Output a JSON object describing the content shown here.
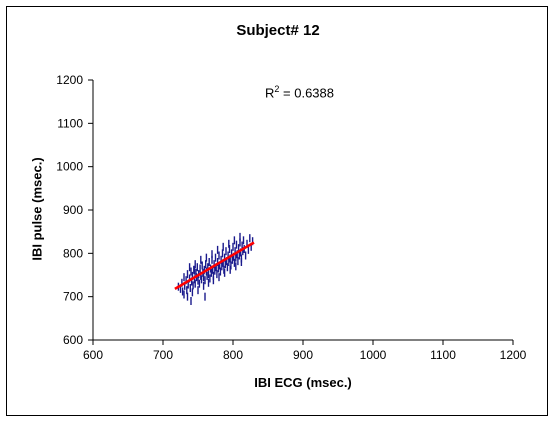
{
  "chart_data": {
    "type": "scatter",
    "title": "Subject# 12",
    "xlabel": "IBI ECG (msec.)",
    "ylabel": "IBI pulse (msec.)",
    "xlim": [
      600,
      1200
    ],
    "ylim": [
      600,
      1200
    ],
    "xticks": [
      600,
      700,
      800,
      900,
      1000,
      1100,
      1200
    ],
    "yticks": [
      600,
      700,
      800,
      900,
      1000,
      1100,
      1200
    ],
    "grid": false,
    "annotation": {
      "r2_prefix": "R",
      "r2_sup": "2",
      "r2_value": " = 0.6388"
    },
    "trendline": {
      "x": [
        717,
        830
      ],
      "y": [
        718,
        825
      ]
    },
    "series_color": "#1a1a8c",
    "trend_color": "#ff0000",
    "points": [
      [
        722,
        723
      ],
      [
        725,
        718
      ],
      [
        727,
        732
      ],
      [
        728,
        712
      ],
      [
        730,
        745
      ],
      [
        731,
        725
      ],
      [
        733,
        738
      ],
      [
        734,
        715
      ],
      [
        735,
        752
      ],
      [
        736,
        728
      ],
      [
        738,
        742
      ],
      [
        739,
        720
      ],
      [
        740,
        758
      ],
      [
        741,
        735
      ],
      [
        742,
        748
      ],
      [
        743,
        726
      ],
      [
        744,
        762
      ],
      [
        745,
        740
      ],
      [
        746,
        730
      ],
      [
        747,
        755
      ],
      [
        748,
        745
      ],
      [
        749,
        768
      ],
      [
        750,
        737
      ],
      [
        751,
        752
      ],
      [
        752,
        730
      ],
      [
        753,
        765
      ],
      [
        754,
        748
      ],
      [
        755,
        740
      ],
      [
        756,
        772
      ],
      [
        757,
        755
      ],
      [
        758,
        745
      ],
      [
        759,
        762
      ],
      [
        760,
        738
      ],
      [
        761,
        775
      ],
      [
        762,
        758
      ],
      [
        763,
        748
      ],
      [
        764,
        768
      ],
      [
        765,
        752
      ],
      [
        766,
        780
      ],
      [
        767,
        742
      ],
      [
        768,
        765
      ],
      [
        769,
        755
      ],
      [
        770,
        785
      ],
      [
        771,
        762
      ],
      [
        772,
        748
      ],
      [
        773,
        775
      ],
      [
        774,
        760
      ],
      [
        775,
        790
      ],
      [
        776,
        768
      ],
      [
        777,
        752
      ],
      [
        778,
        780
      ],
      [
        779,
        765
      ],
      [
        780,
        795
      ],
      [
        781,
        772
      ],
      [
        782,
        758
      ],
      [
        783,
        785
      ],
      [
        784,
        770
      ],
      [
        785,
        800
      ],
      [
        786,
        778
      ],
      [
        787,
        762
      ],
      [
        788,
        790
      ],
      [
        789,
        775
      ],
      [
        790,
        805
      ],
      [
        791,
        782
      ],
      [
        792,
        768
      ],
      [
        793,
        795
      ],
      [
        794,
        780
      ],
      [
        795,
        810
      ],
      [
        796,
        788
      ],
      [
        797,
        772
      ],
      [
        798,
        800
      ],
      [
        799,
        785
      ],
      [
        800,
        815
      ],
      [
        801,
        792
      ],
      [
        802,
        778
      ],
      [
        803,
        805
      ],
      [
        804,
        790
      ],
      [
        805,
        820
      ],
      [
        806,
        798
      ],
      [
        807,
        782
      ],
      [
        808,
        812
      ],
      [
        809,
        795
      ],
      [
        810,
        825
      ],
      [
        811,
        802
      ],
      [
        812,
        788
      ],
      [
        813,
        818
      ],
      [
        814,
        805
      ],
      [
        815,
        830
      ],
      [
        816,
        810
      ],
      [
        818,
        795
      ],
      [
        820,
        822
      ],
      [
        822,
        808
      ],
      [
        824,
        835
      ],
      [
        826,
        815
      ],
      [
        828,
        828
      ],
      [
        730,
        705
      ],
      [
        735,
        700
      ],
      [
        742,
        710
      ],
      [
        750,
        715
      ],
      [
        758,
        725
      ],
      [
        765,
        732
      ],
      [
        772,
        738
      ],
      [
        780,
        745
      ],
      [
        788,
        755
      ],
      [
        796,
        762
      ],
      [
        804,
        770
      ],
      [
        812,
        780
      ],
      [
        738,
        768
      ],
      [
        746,
        775
      ],
      [
        754,
        785
      ],
      [
        762,
        790
      ],
      [
        770,
        798
      ],
      [
        778,
        808
      ],
      [
        786,
        815
      ],
      [
        794,
        822
      ],
      [
        802,
        830
      ],
      [
        810,
        838
      ],
      [
        740,
        690
      ],
      [
        760,
        700
      ],
      [
        745,
        760
      ]
    ]
  }
}
